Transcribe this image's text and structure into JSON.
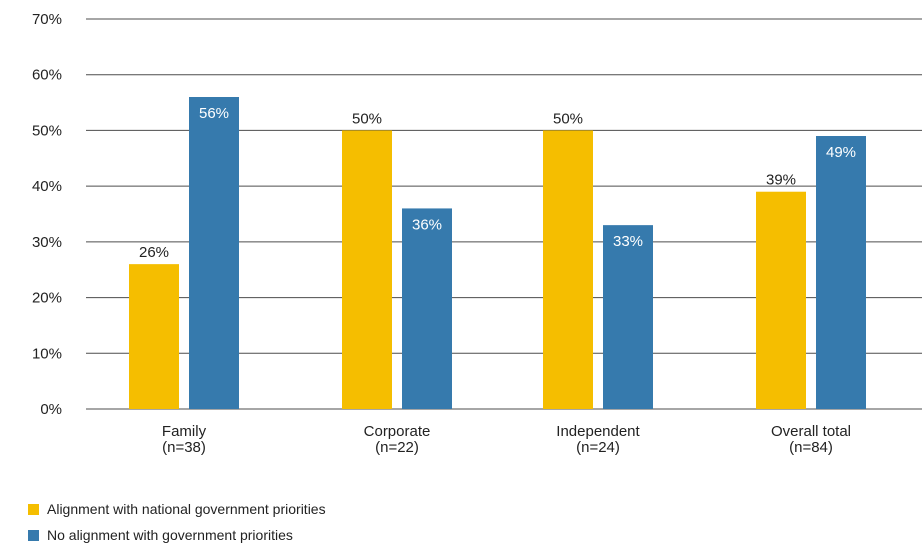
{
  "chart_data": {
    "type": "bar",
    "categories": [
      "Family",
      "Corporate",
      "Independent",
      "Overall total"
    ],
    "category_counts": [
      "(n=38)",
      "(n=22)",
      "(n=24)",
      "(n=84)"
    ],
    "series": [
      {
        "name": "Alignment with national government priorities",
        "color": "#f5be00",
        "values": [
          26,
          50,
          50,
          39
        ],
        "value_labels": [
          "26%",
          "50%",
          "50%",
          "39%"
        ],
        "label_position": "outside",
        "label_color": "#222222"
      },
      {
        "name": "No alignment with government priorities",
        "color": "#367aad",
        "values": [
          56,
          36,
          33,
          49
        ],
        "value_labels": [
          "56%",
          "36%",
          "33%",
          "49%"
        ],
        "label_position": "inside",
        "label_color": "#ffffff"
      }
    ],
    "y_ticks": [
      0,
      10,
      20,
      30,
      40,
      50,
      60,
      70
    ],
    "y_tick_labels": [
      "0%",
      "10%",
      "20%",
      "30%",
      "40%",
      "50%",
      "60%",
      "70%"
    ],
    "ylim": [
      0,
      70
    ],
    "grid": true,
    "legend_position": "bottom-left"
  }
}
